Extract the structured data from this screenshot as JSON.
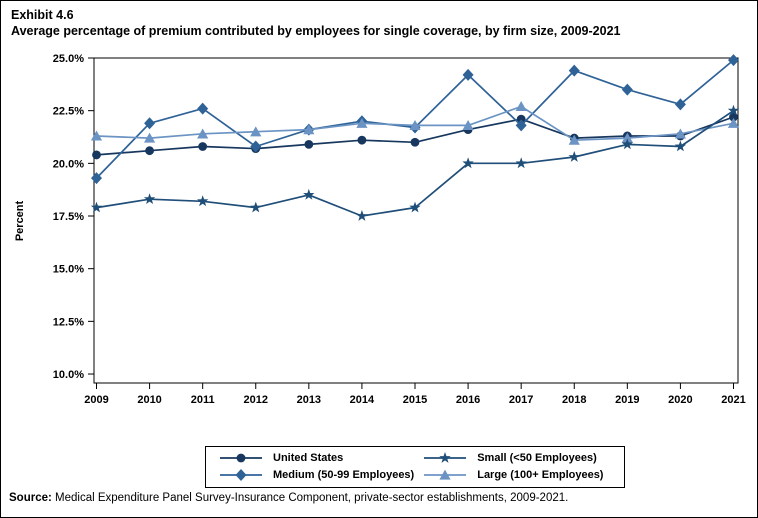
{
  "figure": {
    "exhibit_label": "Exhibit 4.6",
    "title": "Average percentage of premium contributed by employees for single coverage, by firm size, 2009-2021",
    "source_label": "Source:",
    "source_text": " Medical Expenditure Panel Survey-Insurance Component, private-sector establishments, 2009-2021."
  },
  "chart_data": {
    "type": "line",
    "title": "Average percentage of premium contributed by employees for single coverage, by firm size, 2009-2021",
    "xlabel": "",
    "ylabel": "Percent",
    "x": [
      2009,
      2010,
      2011,
      2012,
      2013,
      2014,
      2015,
      2016,
      2017,
      2018,
      2019,
      2020,
      2021
    ],
    "y_ticks": [
      10.0,
      12.5,
      15.0,
      17.5,
      20.0,
      22.5,
      25.0
    ],
    "y_tick_suffix": "%",
    "ylim": [
      9.6,
      25.0
    ],
    "grid": false,
    "legend_position": "bottom",
    "draw_order": [
      0,
      2,
      3,
      1
    ],
    "series": [
      {
        "name": "United States",
        "marker": "circle",
        "color": "#17375e",
        "values": [
          20.4,
          20.6,
          20.8,
          20.7,
          20.9,
          21.1,
          21.0,
          21.6,
          22.1,
          21.2,
          21.3,
          21.3,
          22.2
        ]
      },
      {
        "name": "Small (<50 Employees)",
        "marker": "star",
        "color": "#1f4e79",
        "values": [
          17.9,
          18.3,
          18.2,
          17.9,
          18.5,
          17.5,
          17.9,
          20.0,
          20.0,
          20.3,
          20.9,
          20.8,
          22.5
        ]
      },
      {
        "name": "Medium (50-99 Employees)",
        "marker": "diamond",
        "color": "#2f6397",
        "values": [
          19.3,
          21.9,
          22.6,
          20.8,
          21.6,
          22.0,
          21.7,
          24.2,
          21.8,
          24.4,
          23.5,
          22.8,
          24.9
        ]
      },
      {
        "name": "Large (100+ Employees)",
        "marker": "triangle",
        "color": "#6b94c4",
        "values": [
          21.3,
          21.2,
          21.4,
          21.5,
          21.6,
          21.9,
          21.8,
          21.8,
          22.7,
          21.1,
          21.2,
          21.4,
          21.9
        ]
      }
    ]
  }
}
